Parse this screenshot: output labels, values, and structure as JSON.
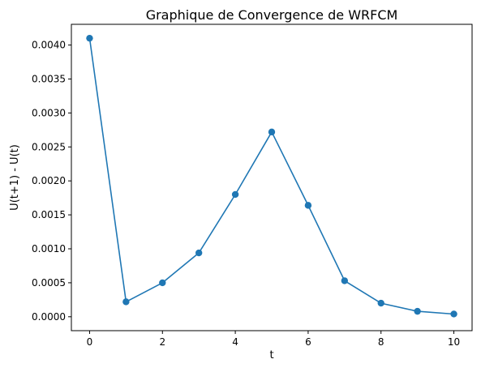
{
  "chart_data": {
    "type": "line",
    "title": "Graphique de Convergence de WRFCM",
    "xlabel": "t",
    "ylabel": "U(t+1) - U(t)",
    "xlim": [
      -0.5,
      10.5
    ],
    "ylim": [
      -0.000205,
      0.004305
    ],
    "x_ticks": [
      0,
      2,
      4,
      6,
      8,
      10
    ],
    "x_tick_labels": [
      "0",
      "2",
      "4",
      "6",
      "8",
      "10"
    ],
    "y_ticks": [
      0,
      0.0005,
      0.001,
      0.0015,
      0.002,
      0.0025,
      0.003,
      0.0035,
      0.004
    ],
    "y_tick_labels": [
      "0.0000",
      "0.0005",
      "0.0010",
      "0.0015",
      "0.0020",
      "0.0025",
      "0.0030",
      "0.0035",
      "0.0040"
    ],
    "grid": false,
    "legend": "none",
    "series": [
      {
        "color": "#1f77b4",
        "marker": "circle",
        "x": [
          0,
          1,
          2,
          3,
          4,
          5,
          6,
          7,
          8,
          9,
          10
        ],
        "y": [
          0.0041,
          0.00022,
          0.0005,
          0.00094,
          0.0018,
          0.00272,
          0.00164,
          0.00053,
          0.0002,
          8e-05,
          4e-05
        ]
      }
    ]
  }
}
